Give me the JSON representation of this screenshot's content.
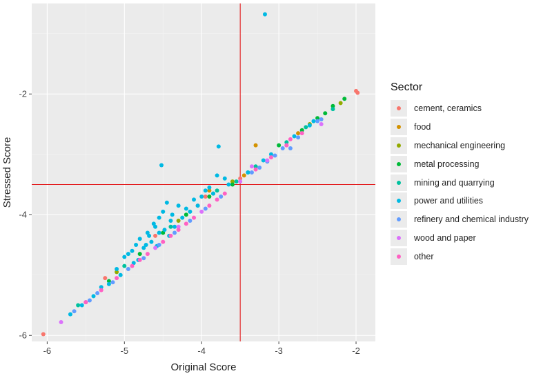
{
  "chart_data": {
    "type": "scatter",
    "xlabel": "Original Score",
    "ylabel": "Stressed Score",
    "xlim": [
      -6.2,
      -1.75
    ],
    "ylim": [
      -6.1,
      -0.5
    ],
    "xticks": [
      -6,
      -5,
      -4,
      -3,
      -2
    ],
    "yticks": [
      -6,
      -4,
      -2
    ],
    "reference_lines": {
      "vertical_x": -3.5,
      "horizontal_y": -3.5,
      "color": "#e31a1c"
    },
    "legend": {
      "title": "Sector",
      "position": "right"
    },
    "series": [
      {
        "name": "cement, ceramics",
        "color": "#F8766D",
        "points": [
          [
            -6.05,
            -5.98
          ],
          [
            -5.25,
            -5.05
          ],
          [
            -4.6,
            -4.35
          ],
          [
            -4.05,
            -3.85
          ],
          [
            -3.95,
            -3.7
          ],
          [
            -3.5,
            -3.4
          ],
          [
            -2.0,
            -1.95
          ],
          [
            -1.98,
            -1.98
          ]
        ]
      },
      {
        "name": "food",
        "color": "#D39200",
        "points": [
          [
            -3.3,
            -2.85
          ],
          [
            -3.9,
            -3.6
          ],
          [
            -3.45,
            -3.35
          ],
          [
            -2.75,
            -2.65
          ]
        ]
      },
      {
        "name": "mechanical engineering",
        "color": "#93AA00",
        "points": [
          [
            -5.1,
            -4.95
          ],
          [
            -4.3,
            -4.1
          ],
          [
            -3.85,
            -3.65
          ],
          [
            -3.6,
            -3.45
          ],
          [
            -2.6,
            -2.5
          ],
          [
            -2.2,
            -2.15
          ]
        ]
      },
      {
        "name": "metal processing",
        "color": "#00BA38",
        "points": [
          [
            -5.2,
            -5.1
          ],
          [
            -4.8,
            -4.65
          ],
          [
            -4.5,
            -4.3
          ],
          [
            -4.2,
            -4.0
          ],
          [
            -3.9,
            -3.7
          ],
          [
            -3.6,
            -3.5
          ],
          [
            -3.4,
            -3.3
          ],
          [
            -3.0,
            -2.85
          ],
          [
            -2.7,
            -2.6
          ],
          [
            -2.5,
            -2.4
          ],
          [
            -2.3,
            -2.2
          ],
          [
            -2.15,
            -2.08
          ],
          [
            -2.4,
            -2.32
          ]
        ]
      },
      {
        "name": "mining and quarrying",
        "color": "#00C19F",
        "points": [
          [
            -5.6,
            -5.5
          ],
          [
            -5.0,
            -4.85
          ],
          [
            -4.4,
            -4.2
          ],
          [
            -3.8,
            -3.6
          ],
          [
            -3.55,
            -3.45
          ],
          [
            -3.3,
            -3.2
          ],
          [
            -2.9,
            -2.8
          ],
          [
            -2.65,
            -2.55
          ],
          [
            -2.3,
            -2.25
          ]
        ]
      },
      {
        "name": "power and utilities",
        "color": "#00B9E3",
        "points": [
          [
            -3.18,
            -0.68
          ],
          [
            -4.52,
            -3.18
          ],
          [
            -3.78,
            -2.87
          ],
          [
            -3.8,
            -3.35
          ],
          [
            -3.7,
            -3.4
          ],
          [
            -4.5,
            -3.95
          ],
          [
            -4.55,
            -4.05
          ],
          [
            -4.6,
            -4.2
          ],
          [
            -4.55,
            -4.3
          ],
          [
            -4.4,
            -4.1
          ],
          [
            -4.3,
            -3.85
          ],
          [
            -4.2,
            -3.9
          ],
          [
            -4.1,
            -3.75
          ],
          [
            -4.0,
            -3.7
          ],
          [
            -3.95,
            -3.6
          ],
          [
            -3.9,
            -3.55
          ],
          [
            -4.45,
            -3.8
          ],
          [
            -4.7,
            -4.3
          ],
          [
            -4.8,
            -4.4
          ],
          [
            -4.85,
            -4.5
          ],
          [
            -4.9,
            -4.6
          ],
          [
            -5.0,
            -4.7
          ],
          [
            -5.1,
            -4.9
          ],
          [
            -5.2,
            -5.15
          ],
          [
            -4.65,
            -4.45
          ],
          [
            -4.75,
            -4.55
          ],
          [
            -4.95,
            -4.65
          ],
          [
            -4.35,
            -4.2
          ],
          [
            -4.25,
            -4.05
          ],
          [
            -4.15,
            -3.95
          ],
          [
            -4.05,
            -3.85
          ],
          [
            -3.85,
            -3.65
          ],
          [
            -3.65,
            -3.5
          ],
          [
            -4.62,
            -4.15
          ],
          [
            -4.48,
            -4.25
          ],
          [
            -4.38,
            -4.0
          ],
          [
            -4.68,
            -4.35
          ],
          [
            -4.72,
            -4.5
          ],
          [
            -5.3,
            -5.2
          ],
          [
            -5.4,
            -5.35
          ],
          [
            -5.5,
            -5.45
          ],
          [
            -5.55,
            -5.5
          ],
          [
            -5.7,
            -5.65
          ],
          [
            -3.4,
            -3.3
          ],
          [
            -3.2,
            -3.1
          ],
          [
            -3.1,
            -3.0
          ],
          [
            -2.8,
            -2.7
          ],
          [
            -2.6,
            -2.52
          ],
          [
            -2.55,
            -2.45
          ],
          [
            -4.42,
            -4.35
          ],
          [
            -4.58,
            -4.52
          ],
          [
            -4.82,
            -4.75
          ],
          [
            -4.88,
            -4.8
          ],
          [
            -5.05,
            -5.0
          ]
        ]
      },
      {
        "name": "refinery and chemical industry",
        "color": "#619CFF",
        "points": [
          [
            -5.65,
            -5.6
          ],
          [
            -5.45,
            -5.42
          ],
          [
            -5.35,
            -5.3
          ],
          [
            -5.15,
            -5.12
          ],
          [
            -4.95,
            -4.9
          ],
          [
            -4.75,
            -4.72
          ],
          [
            -4.55,
            -4.5
          ],
          [
            -4.35,
            -4.3
          ],
          [
            -4.15,
            -4.1
          ],
          [
            -3.95,
            -3.9
          ],
          [
            -3.75,
            -3.7
          ],
          [
            -3.25,
            -3.22
          ],
          [
            -3.05,
            -3.02
          ],
          [
            -2.95,
            -2.9
          ],
          [
            -2.85,
            -2.9
          ],
          [
            -2.5,
            -2.45
          ],
          [
            -2.75,
            -2.72
          ],
          [
            -3.35,
            -3.3
          ],
          [
            -3.15,
            -3.12
          ],
          [
            -2.45,
            -2.42
          ]
        ]
      },
      {
        "name": "wood and paper",
        "color": "#DB72FB",
        "points": [
          [
            -5.82,
            -5.78
          ],
          [
            -5.5,
            -5.45
          ],
          [
            -4.6,
            -4.55
          ],
          [
            -4.0,
            -3.95
          ],
          [
            -3.5,
            -3.45
          ],
          [
            -3.35,
            -3.2
          ],
          [
            -2.9,
            -2.85
          ],
          [
            -2.45,
            -2.5
          ],
          [
            -4.3,
            -4.2
          ],
          [
            -3.15,
            -3.1
          ]
        ]
      },
      {
        "name": "other",
        "color": "#FF61C3",
        "points": [
          [
            -5.5,
            -5.45
          ],
          [
            -5.1,
            -5.05
          ],
          [
            -4.9,
            -4.85
          ],
          [
            -4.7,
            -4.65
          ],
          [
            -4.5,
            -4.45
          ],
          [
            -4.3,
            -4.25
          ],
          [
            -4.1,
            -4.05
          ],
          [
            -3.9,
            -3.85
          ],
          [
            -3.7,
            -3.65
          ],
          [
            -3.3,
            -3.25
          ],
          [
            -3.1,
            -3.05
          ],
          [
            -2.9,
            -2.85
          ],
          [
            -2.7,
            -2.65
          ],
          [
            -2.85,
            -2.75
          ],
          [
            -5.3,
            -5.25
          ],
          [
            -4.8,
            -4.75
          ],
          [
            -4.4,
            -4.35
          ],
          [
            -4.2,
            -4.15
          ],
          [
            -3.8,
            -3.75
          ]
        ]
      }
    ]
  }
}
